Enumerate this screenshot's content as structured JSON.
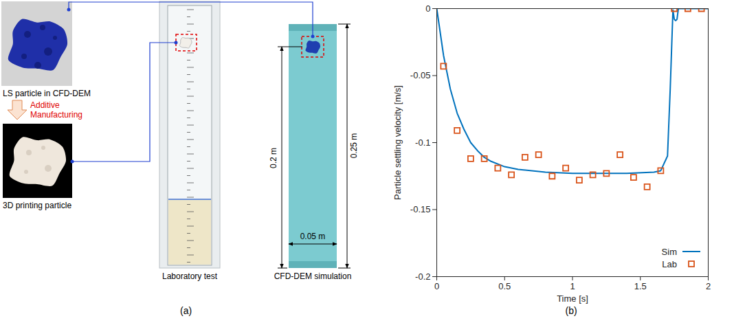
{
  "chart_data": {
    "type": "line",
    "label": "(b)",
    "x_label": "Time [s]",
    "y_label": "Particle settling velocity [m/s]",
    "xlim": [
      0,
      2
    ],
    "xticks": [
      0,
      0.5,
      1,
      1.5,
      2
    ],
    "ylim": [
      -0.2,
      0
    ],
    "yticks": [
      -0.2,
      -0.15,
      -0.1,
      -0.05,
      0
    ],
    "grid": false,
    "legend": "lower right",
    "series": [
      {
        "name": "Sim",
        "type": "line",
        "color": "#0072bd",
        "line_style": "solid",
        "x": [
          0,
          0.05,
          0.1,
          0.15,
          0.2,
          0.25,
          0.3,
          0.35,
          0.4,
          0.5,
          0.6,
          0.8,
          1.0,
          1.2,
          1.4,
          1.6,
          1.65,
          1.7,
          1.72,
          1.74,
          1.75,
          1.76,
          1.77,
          1.78,
          2.0
        ],
        "values": [
          0,
          -0.035,
          -0.06,
          -0.078,
          -0.09,
          -0.1,
          -0.106,
          -0.111,
          -0.114,
          -0.118,
          -0.12,
          -0.122,
          -0.123,
          -0.123,
          -0.123,
          -0.122,
          -0.121,
          -0.11,
          -0.06,
          -0.001,
          -0.008,
          -0.009,
          -0.008,
          0,
          0
        ]
      },
      {
        "name": "Lab",
        "type": "scatter",
        "color": "#d95319",
        "marker": "square",
        "x": [
          0.05,
          0.15,
          0.25,
          0.35,
          0.45,
          0.55,
          0.65,
          0.75,
          0.85,
          0.95,
          1.05,
          1.15,
          1.25,
          1.35,
          1.45,
          1.55,
          1.65,
          1.75,
          1.85,
          1.95
        ],
        "values": [
          -0.043,
          -0.091,
          -0.112,
          -0.112,
          -0.119,
          -0.124,
          -0.111,
          -0.109,
          -0.125,
          -0.119,
          -0.128,
          -0.124,
          -0.123,
          -0.109,
          -0.126,
          -0.133,
          -0.121,
          0,
          0,
          0
        ]
      }
    ]
  },
  "panel_a": {
    "label": "(a)",
    "ls_particle": "LS particle in CFD-DEM",
    "manufacturing": "Additive Manufacturing",
    "printed_particle": "3D printing particle",
    "lab_test": "Laboratory test",
    "simulation": "CFD-DEM simulation",
    "dimensions": {
      "height": "0.25 m",
      "drop": "0.2 m",
      "width": "0.05 m"
    }
  }
}
